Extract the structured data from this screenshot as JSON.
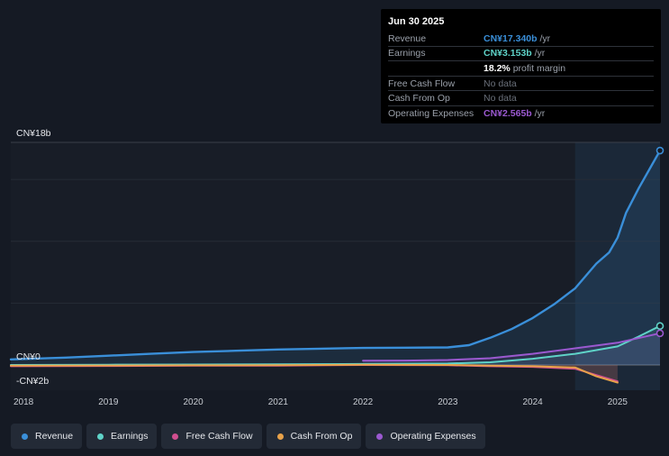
{
  "tooltip": {
    "date": "Jun 30 2025",
    "rows": [
      {
        "label": "Revenue",
        "value": "CN¥17.340b",
        "suffix": " /yr",
        "color": "#3a8fd9"
      },
      {
        "label": "Earnings",
        "value": "CN¥3.153b",
        "suffix": " /yr",
        "color": "#5fd3c8"
      },
      {
        "label": "",
        "value": "18.2%",
        "suffix": " profit margin",
        "color": "#ffffff"
      },
      {
        "label": "Free Cash Flow",
        "value": "No data",
        "suffix": "",
        "color": ""
      },
      {
        "label": "Cash From Op",
        "value": "No data",
        "suffix": "",
        "color": ""
      },
      {
        "label": "Operating Expenses",
        "value": "CN¥2.565b",
        "suffix": " /yr",
        "color": "#9b59d0"
      }
    ]
  },
  "legend": [
    {
      "label": "Revenue",
      "color": "#3a8fd9"
    },
    {
      "label": "Earnings",
      "color": "#5fd3c8"
    },
    {
      "label": "Free Cash Flow",
      "color": "#d04e8f"
    },
    {
      "label": "Cash From Op",
      "color": "#e8a24a"
    },
    {
      "label": "Operating Expenses",
      "color": "#9b59d0"
    }
  ],
  "chart_data": {
    "type": "line",
    "title": "",
    "xlabel": "",
    "ylabel": "",
    "xlim": [
      2017.85,
      2025.5
    ],
    "ylim": [
      -2,
      18
    ],
    "y_labels": [
      {
        "value": 18,
        "text": "CN¥18b"
      },
      {
        "value": 0,
        "text": "CN¥0"
      },
      {
        "value": -2,
        "text": "-CN¥2b"
      }
    ],
    "x_ticks": [
      {
        "value": 2018,
        "text": "2018"
      },
      {
        "value": 2019,
        "text": "2019"
      },
      {
        "value": 2020,
        "text": "2020"
      },
      {
        "value": 2021,
        "text": "2021"
      },
      {
        "value": 2022,
        "text": "2022"
      },
      {
        "value": 2023,
        "text": "2023"
      },
      {
        "value": 2024,
        "text": "2024"
      },
      {
        "value": 2025,
        "text": "2025"
      }
    ],
    "gridlines": [
      18,
      15,
      10,
      5,
      0
    ],
    "highlight_start": 2024.5,
    "series": [
      {
        "name": "Revenue",
        "color": "#3a8fd9",
        "x": [
          2017.85,
          2018.5,
          2019.0,
          2019.5,
          2020.0,
          2020.5,
          2021.0,
          2021.5,
          2022.0,
          2022.5,
          2023.0,
          2023.25,
          2023.5,
          2023.75,
          2024.0,
          2024.25,
          2024.5,
          2024.75,
          2024.9,
          2025.0,
          2025.1,
          2025.25,
          2025.5
        ],
        "values": [
          0.45,
          0.6,
          0.75,
          0.9,
          1.05,
          1.15,
          1.25,
          1.32,
          1.38,
          1.4,
          1.42,
          1.6,
          2.2,
          2.9,
          3.8,
          4.9,
          6.2,
          8.2,
          9.1,
          10.3,
          12.3,
          14.3,
          17.34
        ]
      },
      {
        "name": "Earnings",
        "color": "#5fd3c8",
        "x": [
          2017.85,
          2019.0,
          2020.0,
          2021.0,
          2022.0,
          2023.0,
          2023.5,
          2024.0,
          2024.5,
          2025.0,
          2025.25,
          2025.5
        ],
        "values": [
          0.0,
          0.02,
          0.04,
          0.06,
          0.08,
          0.12,
          0.22,
          0.5,
          0.9,
          1.5,
          2.3,
          3.153
        ]
      },
      {
        "name": "Free Cash Flow",
        "color": "#d04e8f",
        "x": [
          2017.85,
          2019.0,
          2020.0,
          2021.0,
          2022.0,
          2023.0,
          2023.5,
          2024.0,
          2024.5,
          2024.75,
          2025.0
        ],
        "values": [
          -0.1,
          -0.08,
          -0.06,
          -0.05,
          0.0,
          -0.02,
          -0.1,
          -0.15,
          -0.3,
          -0.8,
          -1.3
        ]
      },
      {
        "name": "Cash From Op",
        "color": "#e8a24a",
        "x": [
          2017.85,
          2019.0,
          2020.0,
          2021.0,
          2022.0,
          2023.0,
          2023.5,
          2024.0,
          2024.5,
          2024.75,
          2025.0
        ],
        "values": [
          -0.05,
          -0.04,
          -0.03,
          -0.02,
          0.02,
          0.0,
          -0.05,
          -0.1,
          -0.2,
          -0.9,
          -1.4
        ]
      },
      {
        "name": "Operating Expenses",
        "color": "#9b59d0",
        "x": [
          2022.0,
          2022.5,
          2023.0,
          2023.5,
          2024.0,
          2024.5,
          2025.0,
          2025.5
        ],
        "values": [
          0.35,
          0.36,
          0.4,
          0.55,
          0.9,
          1.35,
          1.8,
          2.565
        ]
      }
    ]
  }
}
